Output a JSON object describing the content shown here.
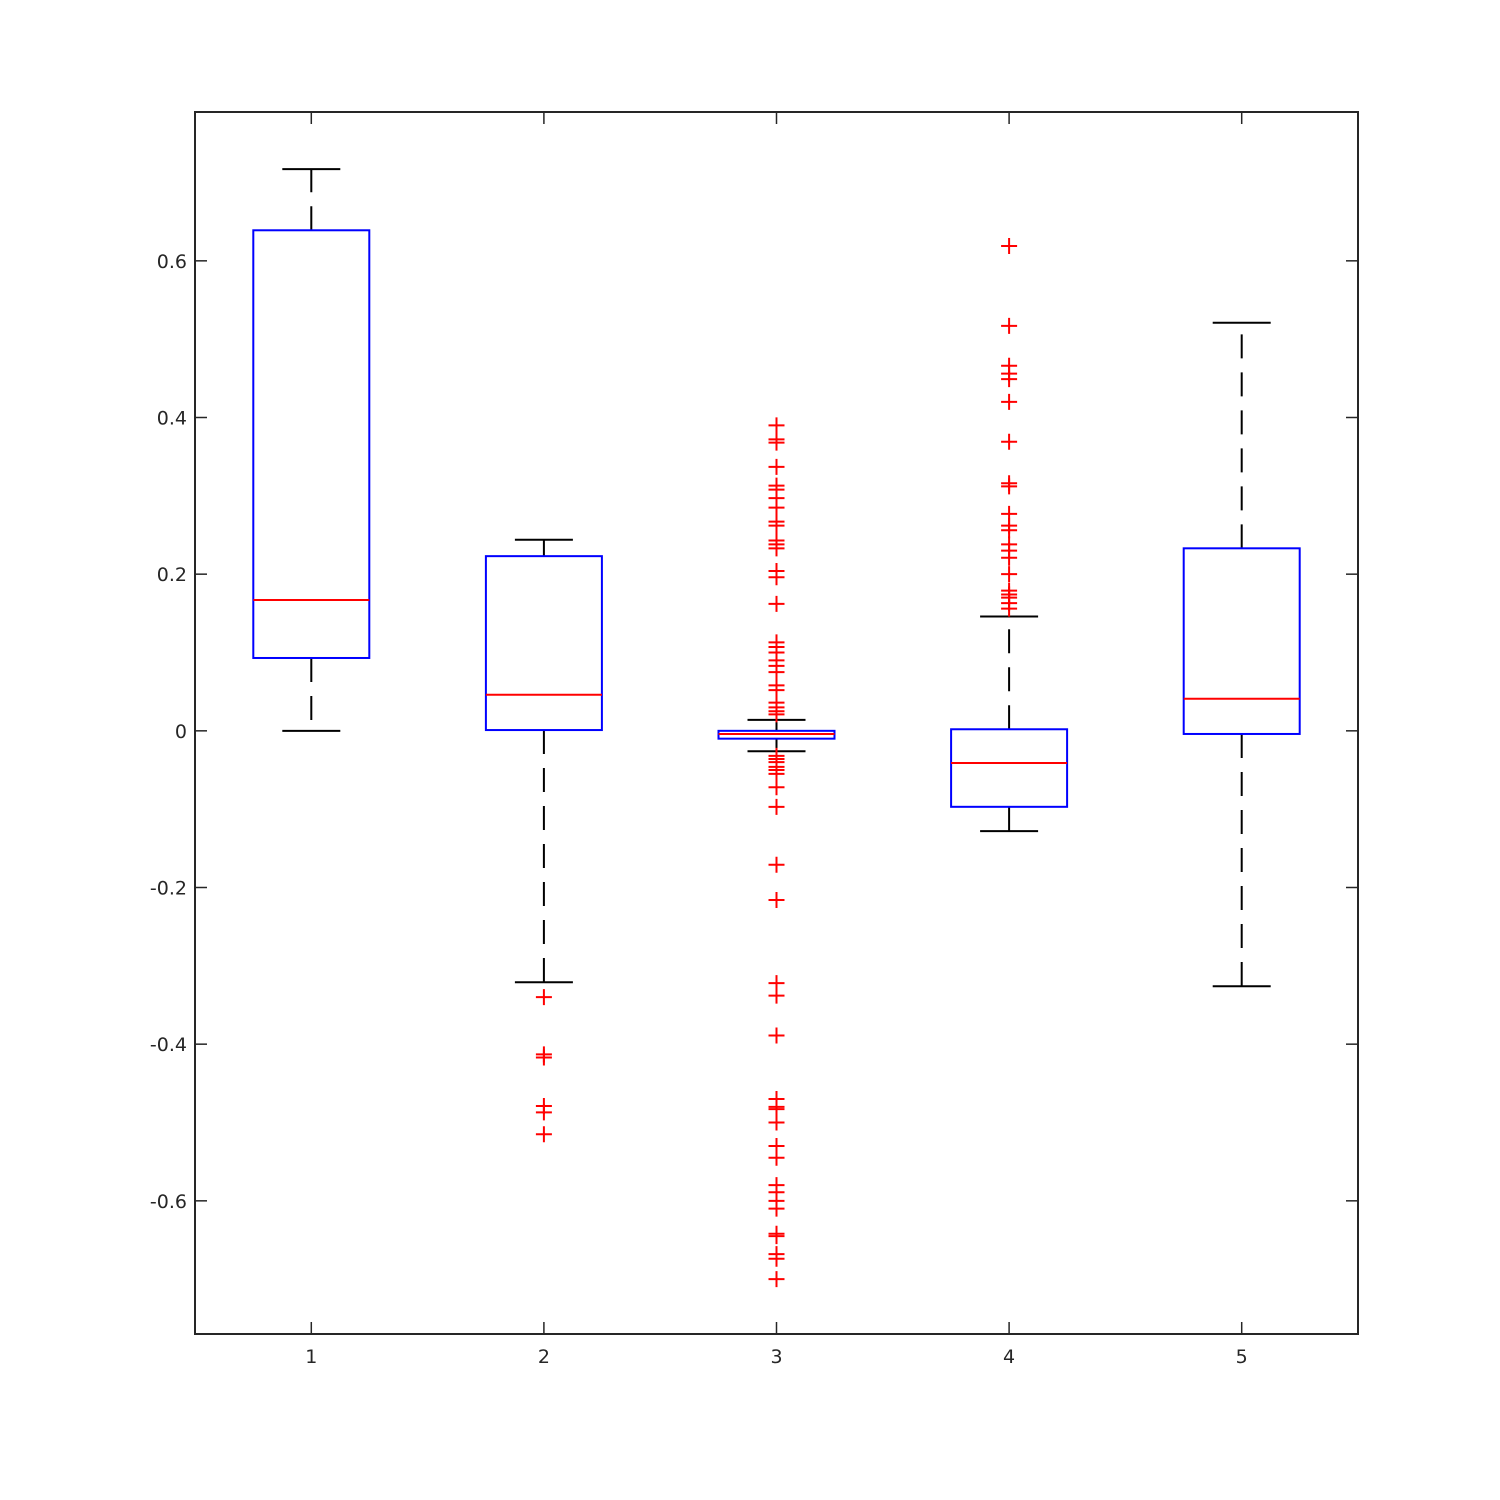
{
  "chart_data": {
    "type": "boxplot",
    "title": "",
    "xlabel": "",
    "ylabel": "",
    "ylim": [
      -0.77,
      0.79
    ],
    "xlim": [
      0.5,
      5.5
    ],
    "x_ticks": [
      1,
      2,
      3,
      4,
      5
    ],
    "x_tick_labels": [
      "1",
      "2",
      "3",
      "4",
      "5"
    ],
    "y_ticks": [
      -0.6,
      -0.4,
      -0.2,
      0,
      0.2,
      0.4,
      0.6
    ],
    "y_tick_labels": [
      "-0.6",
      "-0.4",
      "-0.2",
      "0",
      "0.2",
      "0.4",
      "0.6"
    ],
    "grid": false,
    "colors": {
      "box": "#0000ff",
      "median": "#ff0000",
      "whisker": "#000000",
      "outlier": "#ff0000",
      "axes": "#262626"
    },
    "groups": [
      {
        "label": "1",
        "q1": 0.093,
        "median": 0.167,
        "q3": 0.639,
        "whisker_low": 0.0,
        "whisker_high": 0.717,
        "outliers": []
      },
      {
        "label": "2",
        "q1": 0.001,
        "median": 0.046,
        "q3": 0.223,
        "whisker_low": -0.321,
        "whisker_high": 0.244,
        "outliers": [
          -0.34,
          -0.413,
          -0.417,
          -0.479,
          -0.487,
          -0.515
        ]
      },
      {
        "label": "3",
        "q1": -0.01,
        "median": -0.004,
        "q3": 0.0,
        "whisker_low": -0.026,
        "whisker_high": 0.014,
        "outliers": [
          0.39,
          0.372,
          0.368,
          0.337,
          0.313,
          0.308,
          0.297,
          0.285,
          0.267,
          0.262,
          0.243,
          0.238,
          0.233,
          0.204,
          0.196,
          0.162,
          0.113,
          0.107,
          0.1,
          0.09,
          0.083,
          0.075,
          0.058,
          0.052,
          0.036,
          0.03,
          0.025,
          0.021,
          -0.032,
          -0.036,
          -0.04,
          -0.046,
          -0.05,
          -0.055,
          -0.072,
          -0.097,
          -0.171,
          -0.216,
          -0.322,
          -0.338,
          -0.389,
          -0.47,
          -0.48,
          -0.483,
          -0.5,
          -0.53,
          -0.545,
          -0.58,
          -0.589,
          -0.6,
          -0.61,
          -0.642,
          -0.645,
          -0.668,
          -0.674,
          -0.7
        ]
      },
      {
        "label": "4",
        "q1": -0.097,
        "median": -0.041,
        "q3": 0.002,
        "whisker_low": -0.128,
        "whisker_high": 0.146,
        "outliers": [
          0.619,
          0.517,
          0.466,
          0.456,
          0.449,
          0.42,
          0.369,
          0.316,
          0.312,
          0.277,
          0.262,
          0.256,
          0.238,
          0.23,
          0.221,
          0.2,
          0.179,
          0.174,
          0.17,
          0.163,
          0.156
        ]
      },
      {
        "label": "5",
        "q1": -0.004,
        "median": 0.041,
        "q3": 0.233,
        "whisker_low": -0.326,
        "whisker_high": 0.521,
        "outliers": []
      }
    ]
  }
}
